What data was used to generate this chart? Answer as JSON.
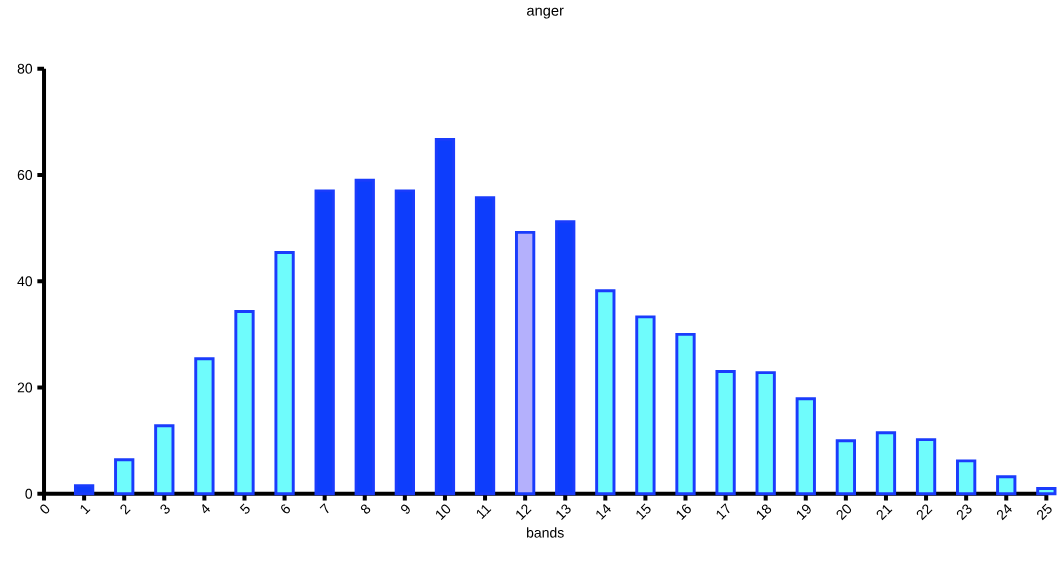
{
  "chart_data": {
    "type": "bar",
    "title": "anger",
    "xlabel": "bands",
    "categories": [
      "0",
      "1",
      "2",
      "3",
      "4",
      "5",
      "6",
      "7",
      "8",
      "9",
      "10",
      "11",
      "12",
      "13",
      "14",
      "15",
      "16",
      "17",
      "18",
      "19",
      "20",
      "21",
      "22",
      "23",
      "24",
      "25"
    ],
    "values": [
      null,
      1.5,
      6.4,
      12.8,
      25.4,
      34.3,
      45.4,
      57,
      59,
      57,
      66.7,
      55.7,
      49.2,
      51.2,
      38.2,
      33.3,
      30,
      23,
      22.8,
      17.9,
      10,
      11.5,
      10.2,
      6.2,
      3.2,
      1
    ],
    "colors": [
      null,
      "#0d3dfc",
      "#6ffcfc",
      "#6ffcfc",
      "#6ffcfc",
      "#6ffcfc",
      "#6ffcfc",
      "#0d3dfc",
      "#0d3dfc",
      "#0d3dfc",
      "#0d3dfc",
      "#0d3dfc",
      "#b4b0fc",
      "#0d3dfc",
      "#6ffcfc",
      "#6ffcfc",
      "#6ffcfc",
      "#6ffcfc",
      "#6ffcfc",
      "#6ffcfc",
      "#6ffcfc",
      "#6ffcfc",
      "#6ffcfc",
      "#6ffcfc",
      "#6ffcfc",
      "#6ffcfc"
    ],
    "ylim": [
      0,
      80
    ],
    "yticks": [
      0,
      20,
      40,
      60,
      80
    ]
  }
}
